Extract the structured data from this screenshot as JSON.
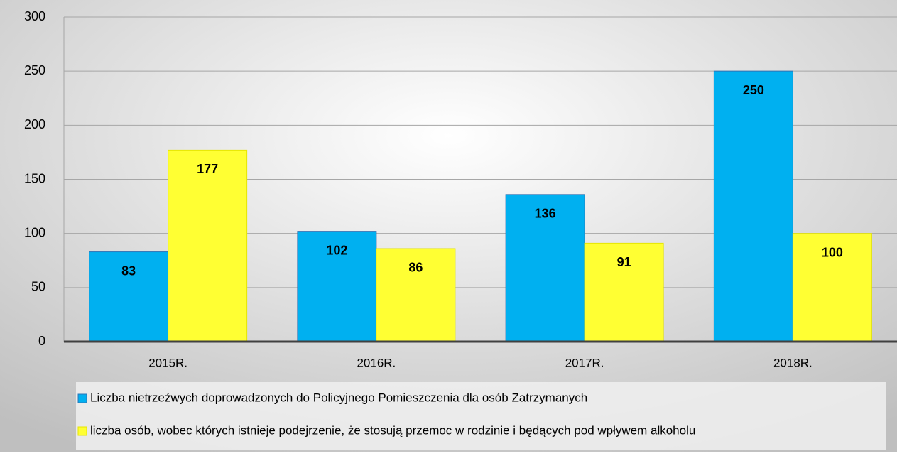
{
  "chart_data": {
    "type": "bar",
    "categories": [
      "2015R.",
      "2016R.",
      "2017R.",
      "2018R."
    ],
    "series": [
      {
        "name": "Liczba nietrzeźwych doprowadzonych do Policyjnego Pomieszczenia dla osób Zatrzymanych",
        "color": "#00b0f0",
        "values": [
          83,
          102,
          136,
          250
        ]
      },
      {
        "name": "liczba osób, wobec których istnieje podejrzenie, że stosują przemoc w rodzinie i będących pod wpływem alkoholu",
        "color": "#ffff33",
        "values": [
          177,
          86,
          91,
          100
        ]
      }
    ],
    "ylim": [
      0,
      300
    ],
    "yticks": [
      0,
      50,
      100,
      150,
      200,
      250,
      300
    ],
    "grid": true,
    "legend": "bottom"
  }
}
